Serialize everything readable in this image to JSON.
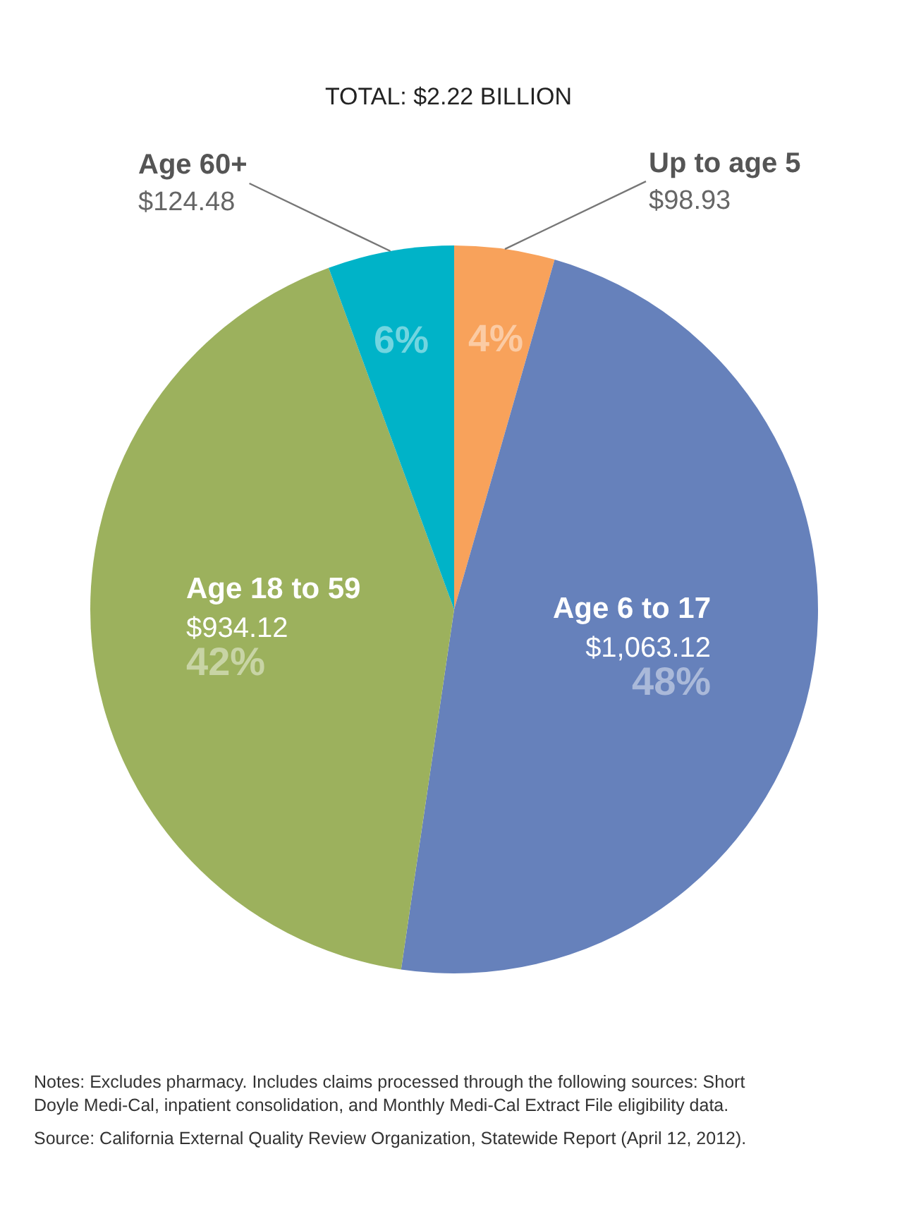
{
  "chart_data": {
    "type": "pie",
    "title": "TOTAL: $2.22 BILLION",
    "categories": [
      "Up to age 5",
      "Age 6 to 17",
      "Age 18 to 59",
      "Age 60+"
    ],
    "values": [
      98.93,
      1063.12,
      934.12,
      124.48
    ],
    "colors": [
      "#f8a25b",
      "#6681bb",
      "#9cb15d",
      "#00b3c8"
    ],
    "value_labels": [
      "$98.93\n4%",
      "$1,063.12\n48%",
      "$934.12\n42%",
      "$124.48\n6%"
    ],
    "legend": false,
    "annotations": [
      "Notes: Excludes pharmacy. Includes claims processed through the following sources: Short Doyle Medi-Cal, inpatient consolidation, and Monthly Medi-Cal Extract File eligibility data.",
      "Source: California External Quality Review Organization, Statewide Report (April 12, 2012)."
    ]
  }
}
